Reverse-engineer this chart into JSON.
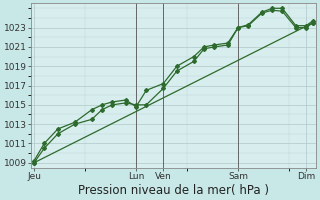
{
  "background_color": "#c8e8e8",
  "grid_color": "#b0c8c8",
  "plot_bg_color": "#d8eeee",
  "line_color": "#2d6a2d",
  "ylim": [
    1008.5,
    1025.5
  ],
  "yticks": [
    1009,
    1011,
    1013,
    1015,
    1017,
    1019,
    1021,
    1023
  ],
  "xlabel": "Pression niveau de la mer( hPa )",
  "xlabel_fontsize": 8.5,
  "tick_fontsize": 6.5,
  "day_labels": [
    "Jeu",
    "Lun",
    "Ven",
    "Sam",
    "Dim"
  ],
  "day_positions": [
    0.0,
    3.0,
    3.8,
    6.0,
    8.0
  ],
  "xlim": [
    -0.1,
    8.3
  ],
  "vlines_x": [
    3.0,
    3.8,
    6.0
  ],
  "line1_x": [
    0.0,
    0.3,
    0.7,
    1.2,
    1.7,
    2.0,
    2.3,
    2.7,
    3.0,
    3.3,
    3.8,
    4.2,
    4.7,
    5.0,
    5.3,
    5.7,
    6.0,
    6.3,
    6.7,
    7.0,
    7.3,
    7.7,
    8.0,
    8.2
  ],
  "line1_y": [
    1009.0,
    1010.5,
    1012.0,
    1013.0,
    1013.5,
    1014.5,
    1015.0,
    1015.2,
    1015.0,
    1015.0,
    1016.7,
    1018.5,
    1019.5,
    1020.8,
    1021.0,
    1021.2,
    1023.0,
    1023.2,
    1024.5,
    1024.8,
    1024.7,
    1023.0,
    1023.0,
    1023.5
  ],
  "line2_x": [
    0.0,
    0.3,
    0.7,
    1.2,
    1.7,
    2.0,
    2.3,
    2.7,
    3.0,
    3.3,
    3.8,
    4.2,
    4.7,
    5.0,
    5.3,
    5.7,
    6.0,
    6.3,
    6.7,
    7.0,
    7.3,
    7.7,
    8.0,
    8.2
  ],
  "line2_y": [
    1009.2,
    1011.0,
    1012.5,
    1013.2,
    1014.5,
    1015.0,
    1015.3,
    1015.5,
    1014.8,
    1016.5,
    1017.2,
    1019.0,
    1020.0,
    1021.0,
    1021.2,
    1021.4,
    1023.0,
    1023.3,
    1024.6,
    1025.0,
    1025.0,
    1023.2,
    1023.2,
    1023.7
  ],
  "line3_x": [
    0.0,
    8.2
  ],
  "line3_y": [
    1009.0,
    1023.5
  ],
  "marker": "D",
  "marker_size": 2.0,
  "linewidth": 0.9
}
